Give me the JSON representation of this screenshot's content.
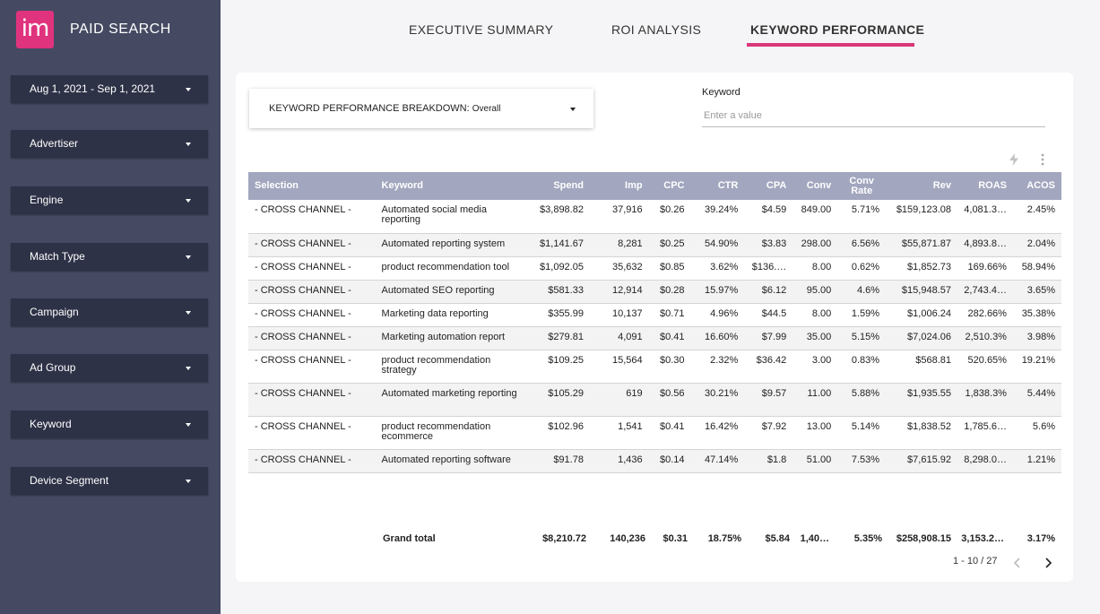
{
  "app": {
    "logo_text": "im",
    "title": "PAID SEARCH",
    "brand_color": "#e0337e"
  },
  "sidebar": {
    "filters": [
      {
        "label": "Aug 1, 2021 - Sep 1, 2021"
      },
      {
        "label": "Advertiser"
      },
      {
        "label": "Engine"
      },
      {
        "label": "Match Type"
      },
      {
        "label": "Campaign"
      },
      {
        "label": "Ad Group"
      },
      {
        "label": "Keyword"
      },
      {
        "label": "Device Segment"
      }
    ]
  },
  "tabs": [
    {
      "label": "EXECUTIVE  SUMMARY",
      "active": false
    },
    {
      "label": "ROI ANALYSIS",
      "active": false
    },
    {
      "label": "KEYWORD PERFORMANCE",
      "active": true
    }
  ],
  "breakdown": {
    "label": "KEYWORD PERFORMANCE BREAKDOWN",
    "value": "Overall"
  },
  "keyword_filter": {
    "label": "Keyword",
    "placeholder": "Enter a value"
  },
  "table": {
    "headers": [
      "Selection",
      "Keyword",
      "Spend",
      "Imp",
      "CPC",
      "CTR",
      "CPA",
      "Conv",
      "Conv Rate",
      "Rev",
      "ROAS",
      "ACOS"
    ],
    "rows": [
      [
        "- CROSS CHANNEL -",
        "Automated social media reporting",
        "$3,898.82",
        "37,916",
        "$0.26",
        "39.24%",
        "$4.59",
        "849.00",
        "5.71%",
        "$159,123.08",
        "4,081.3…",
        "2.45%"
      ],
      [
        "- CROSS CHANNEL -",
        "Automated reporting system",
        "$1,141.67",
        "8,281",
        "$0.25",
        "54.90%",
        "$3.83",
        "298.00",
        "6.56%",
        "$55,871.87",
        "4,893.8…",
        "2.04%"
      ],
      [
        "- CROSS CHANNEL -",
        "product recommendation tool",
        "$1,092.05",
        "35,632",
        "$0.85",
        "3.62%",
        "$136.…",
        "8.00",
        "0.62%",
        "$1,852.73",
        "169.66%",
        "58.94%"
      ],
      [
        "- CROSS CHANNEL -",
        "Automated SEO reporting",
        "$581.33",
        "12,914",
        "$0.28",
        "15.97%",
        "$6.12",
        "95.00",
        "4.6%",
        "$15,948.57",
        "2,743.4…",
        "3.65%"
      ],
      [
        "- CROSS CHANNEL -",
        "Marketing data reporting",
        "$355.99",
        "10,137",
        "$0.71",
        "4.96%",
        "$44.5",
        "8.00",
        "1.59%",
        "$1,006.24",
        "282.66%",
        "35.38%"
      ],
      [
        "- CROSS CHANNEL -",
        "Marketing automation report",
        "$279.81",
        "4,091",
        "$0.41",
        "16.60%",
        "$7.99",
        "35.00",
        "5.15%",
        "$7,024.06",
        "2,510.3%",
        "3.98%"
      ],
      [
        "- CROSS CHANNEL -",
        "product recommendation strategy",
        "$109.25",
        "15,564",
        "$0.30",
        "2.32%",
        "$36.42",
        "3.00",
        "0.83%",
        "$568.81",
        "520.65%",
        "19.21%"
      ],
      [
        "- CROSS CHANNEL -",
        "Automated marketing reporting",
        "$105.29",
        "619",
        "$0.56",
        "30.21%",
        "$9.57",
        "11.00",
        "5.88%",
        "$1,935.55",
        "1,838.3%",
        "5.44%"
      ],
      [
        "- CROSS CHANNEL -",
        "product recommendation ecommerce",
        "$102.96",
        "1,541",
        "$0.41",
        "16.42%",
        "$7.92",
        "13.00",
        "5.14%",
        "$1,838.52",
        "1,785.6…",
        "5.6%"
      ],
      [
        "- CROSS CHANNEL -",
        "Automated reporting software",
        "$91.78",
        "1,436",
        "$0.14",
        "47.14%",
        "$1.8",
        "51.00",
        "7.53%",
        "$7,615.92",
        "8,298.0…",
        "1.21%"
      ]
    ],
    "grand_total": [
      "Grand total",
      "$8,210.72",
      "140,236",
      "$0.31",
      "18.75%",
      "$5.84",
      "1,40…",
      "5.35%",
      "$258,908.15",
      "3,153.2…",
      "3.17%"
    ]
  },
  "pagination": {
    "text": "1 - 10 / 27"
  },
  "colors": {
    "sidebar_bg": "#454a62",
    "filter_bg": "#2e3247",
    "header_bg": "#a2a6be",
    "accent": "#d8377a"
  }
}
